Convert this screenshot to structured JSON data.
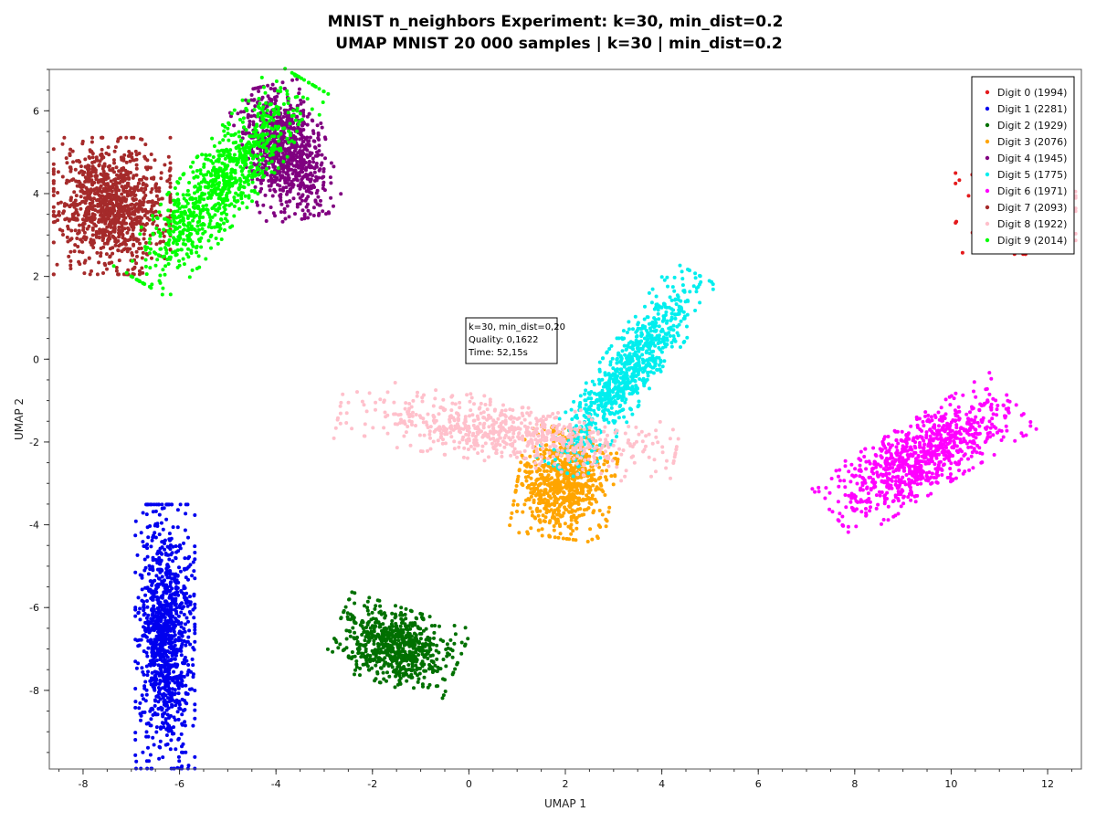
{
  "chart_data": {
    "type": "scatter",
    "title": "MNIST n_neighbors Experiment: k=30, min_dist=0.2",
    "subtitle": "UMAP MNIST 20 000 samples | k=30 | min_dist=0.2",
    "xlabel": "UMAP 1",
    "ylabel": "UMAP 2",
    "xlim": [
      -8.7,
      12.7
    ],
    "ylim": [
      -9.9,
      7.0
    ],
    "xticks": [
      -8,
      -6,
      -4,
      -2,
      0,
      2,
      4,
      6,
      8,
      10,
      12
    ],
    "yticks": [
      -8,
      -6,
      -4,
      -2,
      0,
      2,
      4,
      6
    ],
    "grid": false,
    "legend_position": "top-right",
    "annotation": {
      "lines": [
        "k=30, min_dist=0,20",
        "Quality: 0,1622",
        "Time: 52,15s"
      ],
      "x": 0.0,
      "y": 0.95
    },
    "series": [
      {
        "name": "Digit 0 (1994)",
        "color": "#e41a1c",
        "clusters": [
          {
            "cx": 11.3,
            "cy": 3.75,
            "sx": 0.55,
            "sy": 0.55,
            "rot": 0,
            "n": 240
          }
        ]
      },
      {
        "name": "Digit 1 (2281)",
        "color": "#0000ee",
        "clusters": [
          {
            "cx": -6.3,
            "cy": -6.7,
            "sx": 0.28,
            "sy": 1.45,
            "rot": 0,
            "n": 1100
          }
        ]
      },
      {
        "name": "Digit 2 (1929)",
        "color": "#007000",
        "clusters": [
          {
            "cx": -1.5,
            "cy": -6.95,
            "sx": 0.6,
            "sy": 0.42,
            "rot": -0.35,
            "n": 700
          }
        ]
      },
      {
        "name": "Digit 3 (2076)",
        "color": "#ffa500",
        "clusters": [
          {
            "cx": 2.0,
            "cy": -3.0,
            "sx": 0.45,
            "sy": 0.6,
            "rot": -0.15,
            "n": 750
          }
        ]
      },
      {
        "name": "Digit 4 (1945)",
        "color": "#800080",
        "clusters": [
          {
            "cx": -3.8,
            "cy": 5.0,
            "sx": 0.4,
            "sy": 0.75,
            "rot": 0.25,
            "n": 850
          }
        ]
      },
      {
        "name": "Digit 5 (1775)",
        "color": "#00eeee",
        "clusters": [
          {
            "cx": 3.3,
            "cy": -0.3,
            "sx": 0.28,
            "sy": 1.25,
            "rot": -0.55,
            "n": 800
          }
        ]
      },
      {
        "name": "Digit 6 (1971)",
        "color": "#ff00ff",
        "clusters": [
          {
            "cx": 9.4,
            "cy": -2.35,
            "sx": 0.38,
            "sy": 1.05,
            "rot": -0.95,
            "n": 900
          }
        ]
      },
      {
        "name": "Digit 7 (2093)",
        "color": "#a52a2a",
        "clusters": [
          {
            "cx": -7.4,
            "cy": 3.7,
            "sx": 0.55,
            "sy": 0.75,
            "rot": 0,
            "n": 1050
          }
        ]
      },
      {
        "name": "Digit 8 (1922)",
        "color": "#ffc0cb",
        "clusters": [
          {
            "cx": 0.8,
            "cy": -1.75,
            "sx": 0.35,
            "sy": 1.6,
            "rot": 1.4,
            "n": 700
          },
          {
            "cx": 11.7,
            "cy": 3.8,
            "sx": 0.4,
            "sy": 0.5,
            "rot": 0,
            "n": 500
          }
        ]
      },
      {
        "name": "Digit 9 (2014)",
        "color": "#00ff00",
        "clusters": [
          {
            "cx": -5.1,
            "cy": 4.3,
            "sx": 0.35,
            "sy": 1.35,
            "rot": -0.6,
            "n": 900
          }
        ]
      }
    ]
  }
}
